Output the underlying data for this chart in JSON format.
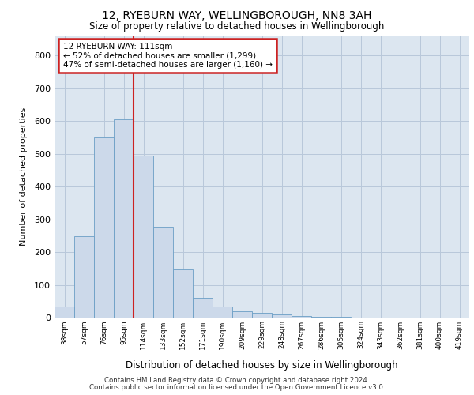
{
  "title1": "12, RYEBURN WAY, WELLINGBOROUGH, NN8 3AH",
  "title2": "Size of property relative to detached houses in Wellingborough",
  "xlabel": "Distribution of detached houses by size in Wellingborough",
  "ylabel": "Number of detached properties",
  "footer1": "Contains HM Land Registry data © Crown copyright and database right 2024.",
  "footer2": "Contains public sector information licensed under the Open Government Licence v3.0.",
  "bar_values": [
    35,
    248,
    550,
    605,
    495,
    277,
    147,
    62,
    35,
    20,
    15,
    12,
    5,
    4,
    3,
    2,
    2,
    1,
    1,
    1,
    1
  ],
  "bar_labels": [
    "38sqm",
    "57sqm",
    "76sqm",
    "95sqm",
    "114sqm",
    "133sqm",
    "152sqm",
    "171sqm",
    "190sqm",
    "209sqm",
    "229sqm",
    "248sqm",
    "267sqm",
    "286sqm",
    "305sqm",
    "324sqm",
    "343sqm",
    "362sqm",
    "381sqm",
    "400sqm",
    "419sqm"
  ],
  "bar_color": "#ccd9ea",
  "bar_edge_color": "#6a9ec5",
  "annot_line1": "12 RYEBURN WAY: 111sqm",
  "annot_line2": "← 52% of detached houses are smaller (1,299)",
  "annot_line3": "47% of semi-detached houses are larger (1,160) →",
  "red_line_color": "#cc2222",
  "annotation_box_color": "#ffffff",
  "annotation_box_edge": "#cc2222",
  "grid_color": "#b8c8da",
  "background_color": "#dce6f0",
  "ylim": [
    0,
    860
  ],
  "yticks": [
    0,
    100,
    200,
    300,
    400,
    500,
    600,
    700,
    800
  ],
  "property_bin_index": 4
}
